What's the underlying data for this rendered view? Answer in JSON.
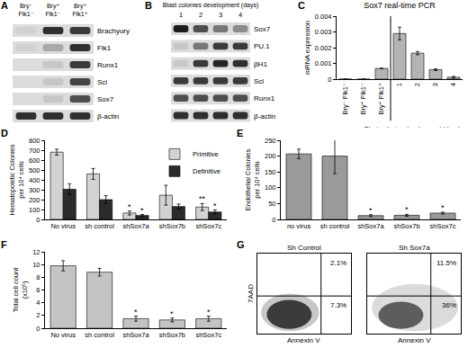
{
  "chart_data": [
    {
      "panel": "A",
      "type": "gel",
      "columns": [
        "Bry⁻ Flk1⁻",
        "Bry⁺ Flk1⁻",
        "Bry⁺ Flk1⁺"
      ],
      "rows": [
        {
          "name": "Brachyury",
          "bands": [
            0.05,
            0.85,
            0.8
          ]
        },
        {
          "name": "Flk1",
          "bands": [
            0.05,
            0.25,
            0.85
          ]
        },
        {
          "name": "Runx1",
          "bands": [
            0.0,
            0.1,
            0.8
          ]
        },
        {
          "name": "Scl",
          "bands": [
            0.0,
            0.1,
            0.75
          ]
        },
        {
          "name": "Sox7",
          "bands": [
            0.0,
            0.1,
            0.7
          ]
        },
        {
          "name": "β-actin",
          "bands": [
            0.85,
            0.85,
            0.85
          ]
        }
      ]
    },
    {
      "panel": "B",
      "type": "gel",
      "title": "Blast colonies development (days)",
      "columns": [
        "1",
        "2",
        "3",
        "4"
      ],
      "rows": [
        {
          "name": "Sox7",
          "bands": [
            0.95,
            0.7,
            0.5,
            0.4
          ]
        },
        {
          "name": "PU.1",
          "bands": [
            0.1,
            0.5,
            0.8,
            0.8
          ]
        },
        {
          "name": "βH1",
          "bands": [
            0.1,
            0.8,
            0.9,
            0.85
          ]
        },
        {
          "name": "Scl",
          "bands": [
            0.8,
            0.8,
            0.8,
            0.8
          ]
        },
        {
          "name": "Runx1",
          "bands": [
            0.7,
            0.7,
            0.7,
            0.7
          ]
        },
        {
          "name": "β-actin",
          "bands": [
            0.85,
            0.85,
            0.85,
            0.85
          ]
        }
      ]
    },
    {
      "panel": "C",
      "type": "bar",
      "title": "Sox7 real-time PCR",
      "ylabel": [
        "mRNA expression"
      ],
      "categories": [
        "Bry⁻ Flk1⁻",
        "Bry⁺ Flk1⁻",
        "Bry⁺ Flk1⁺",
        "1",
        "2",
        "3",
        "4"
      ],
      "values": [
        0,
        0,
        0.00068,
        0.0029,
        0.00165,
        0.0006,
        0.00012
      ],
      "errors": [
        0,
        0,
        0,
        0.0004,
        0.0001,
        5e-05,
        5e-05
      ],
      "color": "#b4b4b4",
      "ylim": [
        0,
        0.004
      ],
      "yticks": [
        0,
        0.001,
        0.002,
        0.003,
        0.004
      ],
      "grid": false,
      "annotations": [
        {
          "text": "Blast colonies development (days)",
          "categories": [
            "1",
            "2",
            "3",
            "4"
          ]
        }
      ]
    },
    {
      "panel": "D",
      "type": "bar",
      "ylabel": [
        "Hematopoietic Colonies",
        "per 10⁴ cells"
      ],
      "categories": [
        "No virus",
        "sh control",
        "shSox7a",
        "shSox7b",
        "shSox7c"
      ],
      "series": [
        {
          "name": "Primitive",
          "color": "#d2d2d2",
          "values": [
            680,
            460,
            65,
            245,
            125
          ],
          "errors": [
            30,
            55,
            20,
            100,
            35
          ],
          "significance": [
            null,
            null,
            "*",
            null,
            "**"
          ]
        },
        {
          "name": "Definitive",
          "color": "#2b2b2b",
          "values": [
            305,
            200,
            40,
            130,
            75
          ],
          "errors": [
            55,
            40,
            10,
            25,
            20
          ],
          "significance": [
            null,
            null,
            "*",
            null,
            "*"
          ]
        }
      ],
      "ylim": [
        0,
        800
      ],
      "yticks": [
        0,
        100,
        200,
        300,
        400,
        500,
        600,
        700,
        800
      ],
      "legend": "top-right",
      "grid": false
    },
    {
      "panel": "E",
      "type": "bar",
      "ylabel": [
        "Endothelial Colonies",
        "per 10⁴ cells"
      ],
      "categories": [
        "no virus",
        "sh control",
        "shSox7a",
        "shSox7b",
        "shSox7c"
      ],
      "values": [
        207,
        200,
        12,
        13,
        20
      ],
      "errors": [
        15,
        55,
        3,
        3,
        3
      ],
      "significance": [
        null,
        null,
        "*",
        "*",
        "*"
      ],
      "color": "#9a9a9a",
      "ylim": [
        0,
        250
      ],
      "yticks": [
        0,
        50,
        100,
        150,
        200,
        250
      ],
      "grid": false
    },
    {
      "panel": "F",
      "type": "bar",
      "ylabel": [
        "Total cell count",
        "(x10⁵)"
      ],
      "categories": [
        "No virus",
        "sh control",
        "shSox7a",
        "shSox7b",
        "shSox7c"
      ],
      "values": [
        9.8,
        8.8,
        1.5,
        1.3,
        1.5
      ],
      "errors": [
        0.8,
        0.6,
        0.4,
        0.3,
        0.4
      ],
      "significance": [
        null,
        null,
        "*",
        "*",
        "*"
      ],
      "color": "#c4c4c4",
      "ylim": [
        0,
        12
      ],
      "yticks": [
        0,
        2,
        4,
        6,
        8,
        10,
        12
      ],
      "grid": false
    },
    {
      "panel": "G",
      "type": "flow",
      "xlabel": "Annexin V",
      "ylabel": "7AAD",
      "tick_labels": false,
      "plots": [
        {
          "title": "Sh Control",
          "upper_right": {
            "value": 2.1,
            "label": "2.1%"
          },
          "lower_right": {
            "value": 7.3,
            "label": "7.3%"
          }
        },
        {
          "title": "Sh Sox7a",
          "upper_right": {
            "value": 11.5,
            "label": "11.5%"
          },
          "lower_right": {
            "value": 36,
            "label": "36%"
          }
        }
      ]
    }
  ]
}
